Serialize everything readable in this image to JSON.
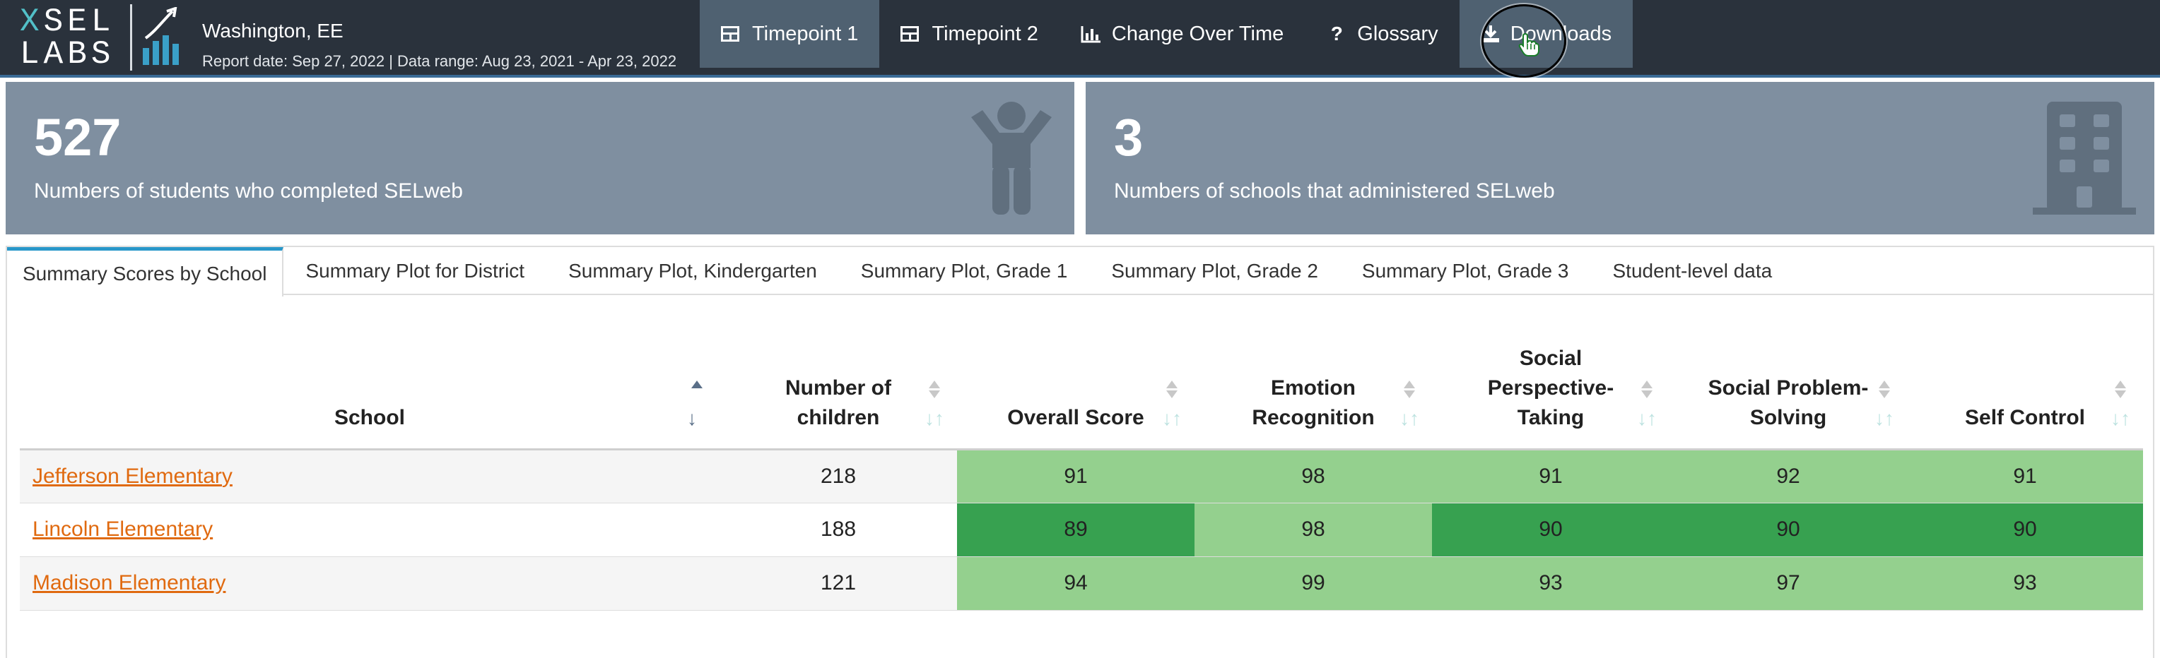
{
  "header": {
    "logo_text_top": "SEL",
    "logo_text_top_x": "X",
    "logo_text_bottom": "LABS",
    "title": "Washington, EE",
    "subtitle": "Report date: Sep 27, 2022 | Data range: Aug 23, 2021 - Apr 23, 2022"
  },
  "nav": {
    "items": [
      {
        "label": "Timepoint 1",
        "icon": "table-icon",
        "active": true
      },
      {
        "label": "Timepoint 2",
        "icon": "table-icon",
        "active": false
      },
      {
        "label": "Change Over Time",
        "icon": "bar-chart-icon",
        "active": false
      },
      {
        "label": "Glossary",
        "icon": "question-icon",
        "active": false
      },
      {
        "label": "Downloads",
        "icon": "download-icon",
        "active": true
      }
    ]
  },
  "value_boxes": [
    {
      "value": "527",
      "caption": "Numbers of students who completed SELweb",
      "icon": "child-icon"
    },
    {
      "value": "3",
      "caption": "Numbers of schools that administered SELweb",
      "icon": "building-icon"
    }
  ],
  "tabs": [
    {
      "label": "Summary Scores by School",
      "active": true
    },
    {
      "label": "Summary Plot for District"
    },
    {
      "label": "Summary Plot, Kindergarten"
    },
    {
      "label": "Summary Plot, Grade 1"
    },
    {
      "label": "Summary Plot, Grade 2"
    },
    {
      "label": "Summary Plot, Grade 3"
    },
    {
      "label": "Student-level data"
    }
  ],
  "table": {
    "headers": {
      "school": "School",
      "children_1": "Number of",
      "children_2": "children",
      "overall": "Overall Score",
      "emotion_1": "Emotion",
      "emotion_2": "Recognition",
      "spt_1": "Social",
      "spt_2": "Perspective-",
      "spt_3": "Taking",
      "sps_1": "Social Problem-",
      "sps_2": "Solving",
      "self": "Self Control"
    },
    "rows": [
      {
        "school": "Jefferson Elementary",
        "children": "218",
        "overall": "91",
        "emotion": "98",
        "spt": "91",
        "sps": "92",
        "self": "91"
      },
      {
        "school": "Lincoln Elementary",
        "children": "188",
        "overall": "89",
        "emotion": "98",
        "spt": "90",
        "sps": "90",
        "self": "90"
      },
      {
        "school": "Madison Elementary",
        "children": "121",
        "overall": "94",
        "emotion": "99",
        "spt": "93",
        "sps": "97",
        "self": "93"
      }
    ],
    "colors": {
      "light_green": "#94d08e",
      "dark_green": "#37a150",
      "odd_row": "#f5f5f5"
    }
  }
}
